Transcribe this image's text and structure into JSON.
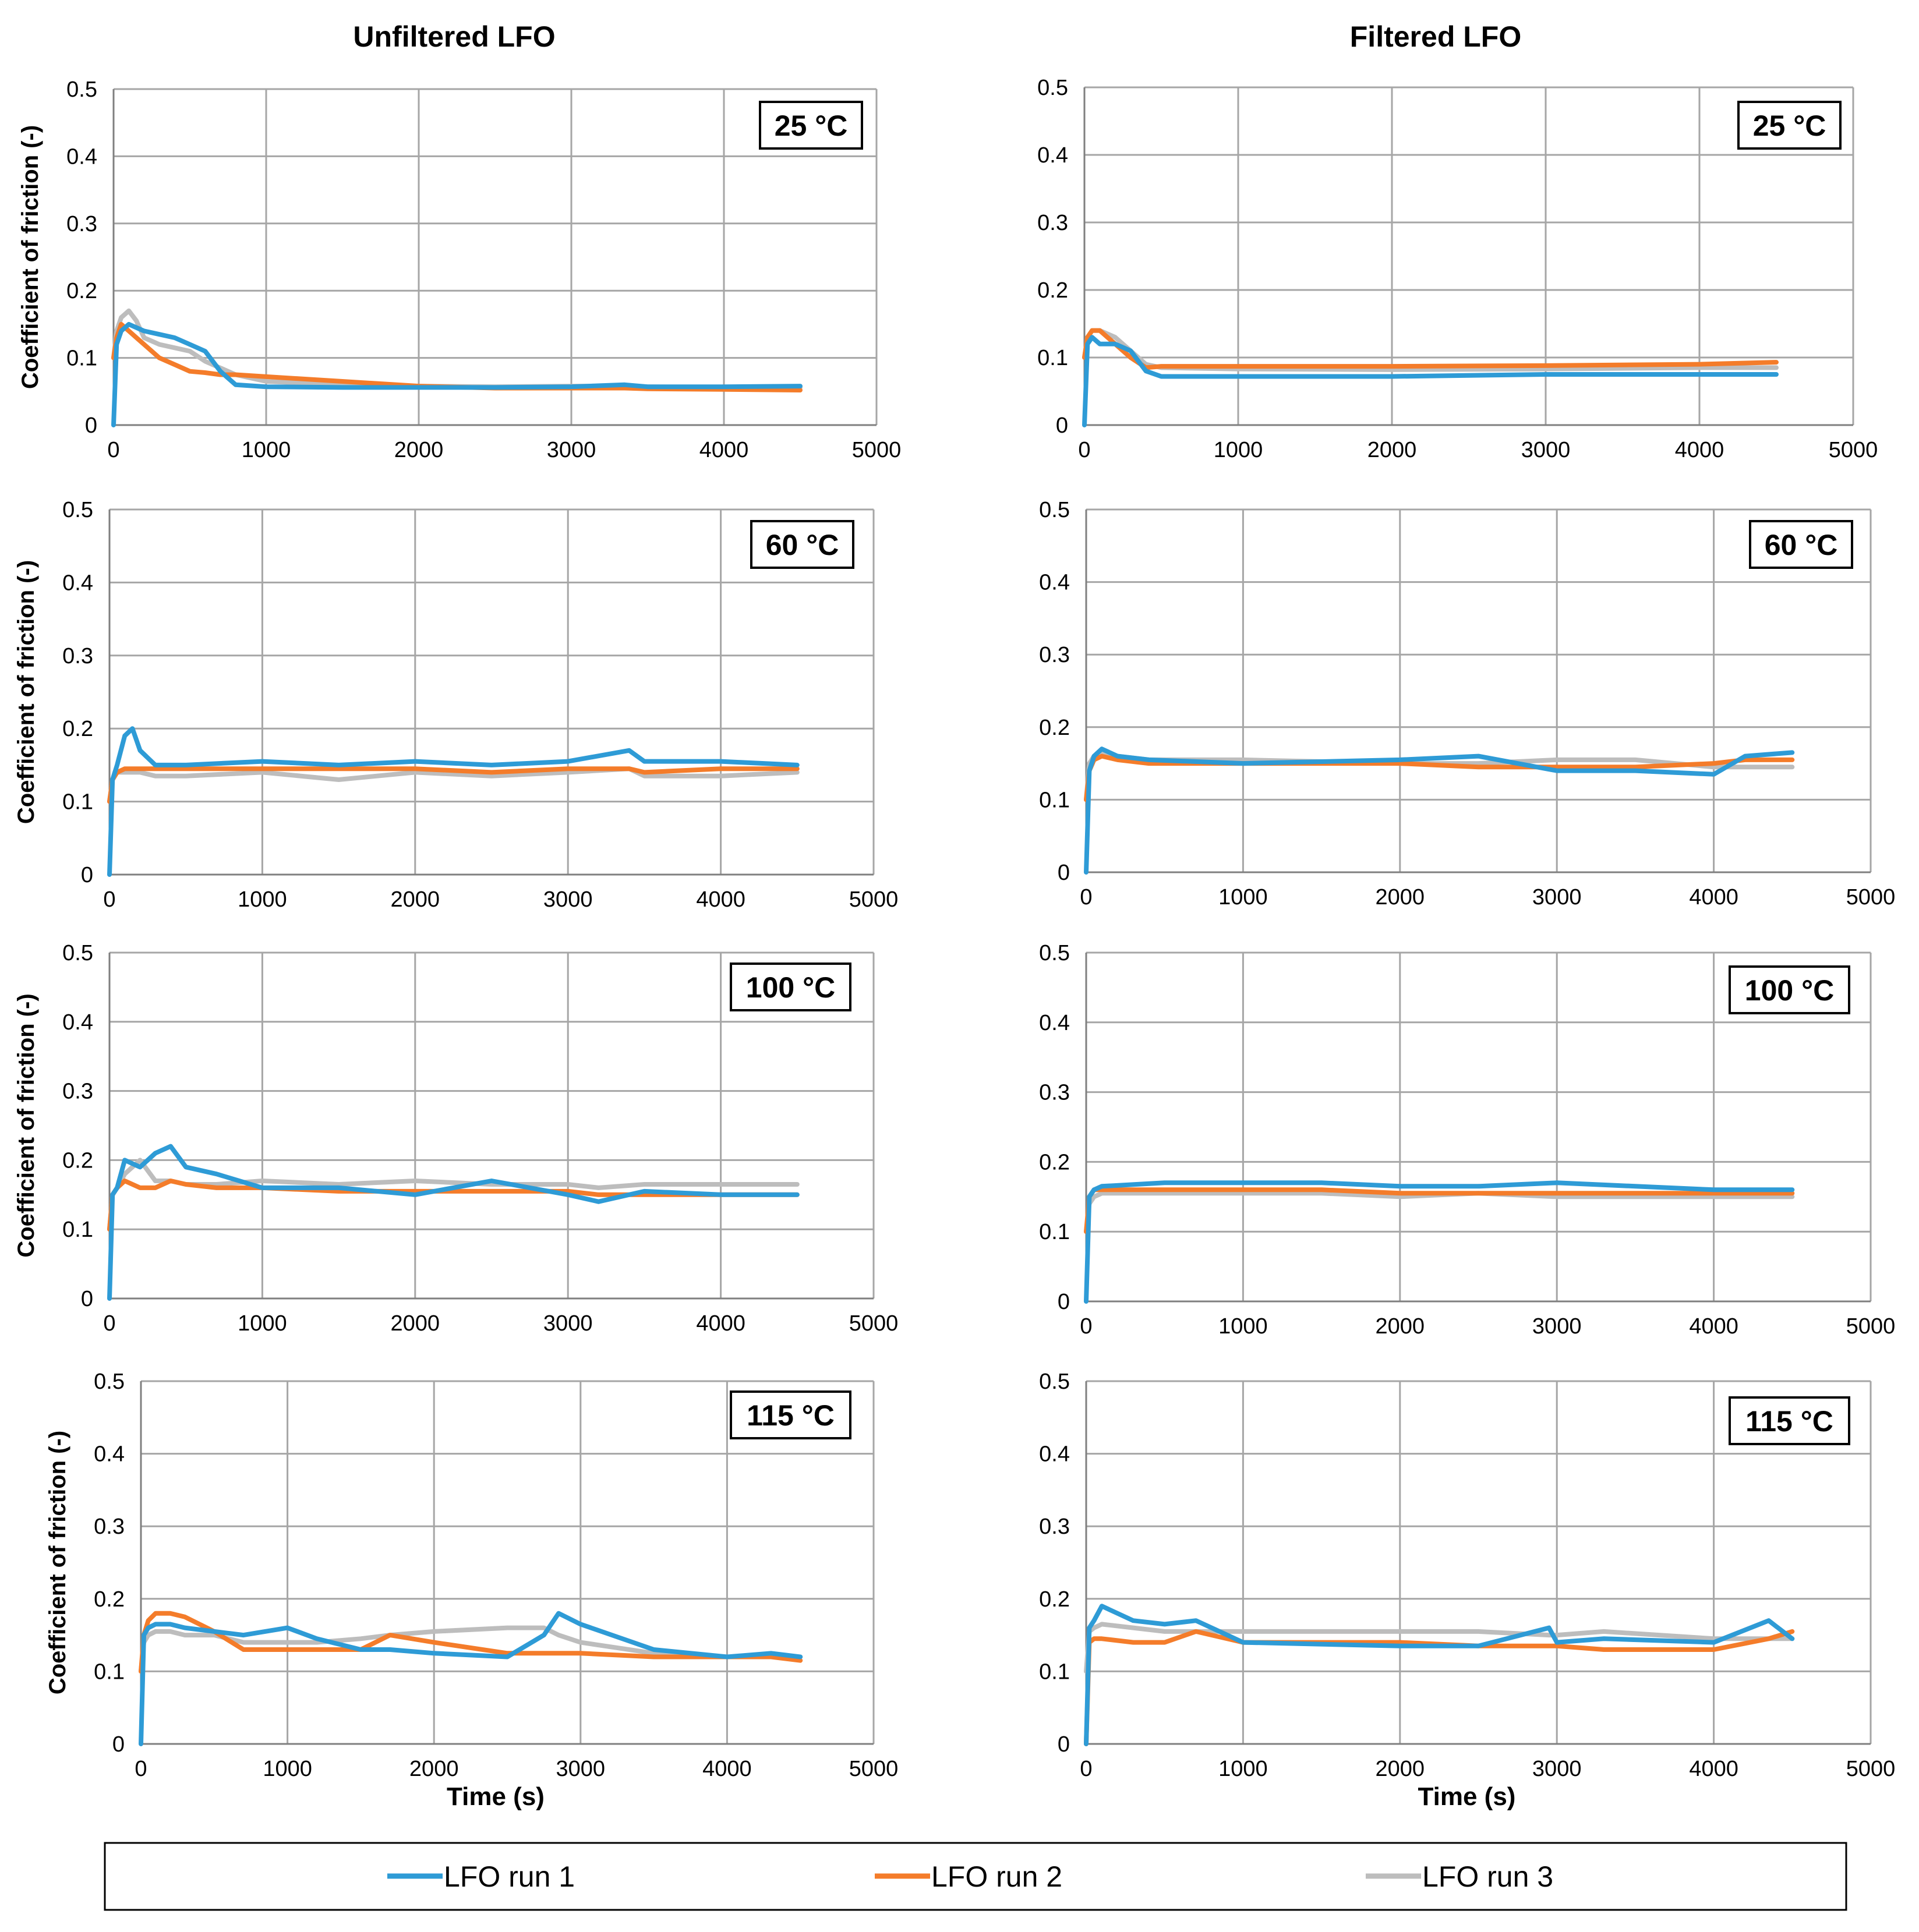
{
  "figure": {
    "column_titles": [
      "Unfiltered LFO",
      "Filtered LFO"
    ],
    "legend": [
      {
        "label": "LFO run 1",
        "color": "#2E9BD6"
      },
      {
        "label": "LFO run 2",
        "color": "#F47C2A"
      },
      {
        "label": "LFO run 3",
        "color": "#BDBDBD"
      }
    ]
  },
  "chart_data": [
    {
      "type": "line",
      "panel": "Unfiltered LFO",
      "annotation": "25 °C",
      "ylabel": "Coefficient of friction (-)",
      "xlabel": "",
      "xlim": [
        0,
        5000
      ],
      "ylim": [
        0,
        0.5
      ],
      "xticks": [
        "0",
        "1000",
        "2000",
        "3000",
        "4000",
        "5000"
      ],
      "yticks": [
        "0",
        "0.1",
        "0.2",
        "0.3",
        "0.4",
        "0.5"
      ],
      "grid": true,
      "x": [
        0,
        20,
        50,
        100,
        150,
        200,
        300,
        400,
        500,
        600,
        700,
        800,
        1000,
        1500,
        2000,
        2500,
        3000,
        3350,
        3500,
        4000,
        4500
      ],
      "series": [
        {
          "name": "LFO run 1",
          "values": [
            0.0,
            0.12,
            0.14,
            0.15,
            0.145,
            0.14,
            0.135,
            0.13,
            0.12,
            0.11,
            0.08,
            0.06,
            0.057,
            0.056,
            0.056,
            0.056,
            0.057,
            0.06,
            0.057,
            0.057,
            0.058
          ]
        },
        {
          "name": "LFO run 2",
          "values": [
            0.1,
            0.13,
            0.15,
            0.14,
            0.13,
            0.12,
            0.1,
            0.09,
            0.08,
            0.078,
            0.075,
            0.075,
            0.072,
            0.065,
            0.058,
            0.055,
            0.055,
            0.055,
            0.054,
            0.053,
            0.052
          ]
        },
        {
          "name": "LFO run 3",
          "values": [
            0.1,
            0.14,
            0.16,
            0.17,
            0.155,
            0.13,
            0.12,
            0.115,
            0.11,
            0.095,
            0.085,
            0.075,
            0.065,
            0.06,
            0.058,
            0.057,
            0.058,
            0.058,
            0.057,
            0.056,
            0.056
          ]
        }
      ]
    },
    {
      "type": "line",
      "panel": "Filtered LFO",
      "annotation": "25 °C",
      "ylabel": "",
      "xlabel": "",
      "xlim": [
        0,
        5000
      ],
      "ylim": [
        0,
        0.5
      ],
      "xticks": [
        "0",
        "1000",
        "2000",
        "3000",
        "4000",
        "5000"
      ],
      "yticks": [
        "0",
        "0.1",
        "0.2",
        "0.3",
        "0.4",
        "0.5"
      ],
      "grid": true,
      "x": [
        0,
        20,
        50,
        100,
        150,
        200,
        300,
        400,
        500,
        1000,
        2000,
        3000,
        4000,
        4500
      ],
      "series": [
        {
          "name": "LFO run 1",
          "values": [
            0.0,
            0.12,
            0.13,
            0.12,
            0.12,
            0.12,
            0.11,
            0.08,
            0.072,
            0.072,
            0.072,
            0.075,
            0.075,
            0.075
          ]
        },
        {
          "name": "LFO run 2",
          "values": [
            0.1,
            0.13,
            0.14,
            0.14,
            0.13,
            0.12,
            0.1,
            0.085,
            0.087,
            0.087,
            0.087,
            0.088,
            0.09,
            0.093
          ]
        },
        {
          "name": "LFO run 3",
          "values": [
            0.1,
            0.13,
            0.14,
            0.14,
            0.135,
            0.13,
            0.11,
            0.09,
            0.085,
            0.083,
            0.082,
            0.083,
            0.085,
            0.085
          ]
        }
      ]
    },
    {
      "type": "line",
      "panel": "Unfiltered LFO",
      "annotation": "60 °C",
      "ylabel": "Coefficient of friction (-)",
      "xlabel": "",
      "xlim": [
        0,
        5000
      ],
      "ylim": [
        0,
        0.5
      ],
      "xticks": [
        "0",
        "1000",
        "2000",
        "3000",
        "4000",
        "5000"
      ],
      "yticks": [
        "0",
        "0.1",
        "0.2",
        "0.3",
        "0.4",
        "0.5"
      ],
      "grid": true,
      "x": [
        0,
        20,
        50,
        100,
        150,
        200,
        300,
        500,
        1000,
        1500,
        2000,
        2500,
        3000,
        3400,
        3500,
        4000,
        4500
      ],
      "series": [
        {
          "name": "LFO run 1",
          "values": [
            0.0,
            0.13,
            0.15,
            0.19,
            0.2,
            0.17,
            0.15,
            0.15,
            0.155,
            0.15,
            0.155,
            0.15,
            0.155,
            0.17,
            0.155,
            0.155,
            0.15
          ]
        },
        {
          "name": "LFO run 2",
          "values": [
            0.1,
            0.13,
            0.14,
            0.145,
            0.145,
            0.145,
            0.145,
            0.145,
            0.145,
            0.145,
            0.145,
            0.14,
            0.145,
            0.145,
            0.14,
            0.145,
            0.145
          ]
        },
        {
          "name": "LFO run 3",
          "values": [
            0.1,
            0.13,
            0.14,
            0.14,
            0.14,
            0.14,
            0.135,
            0.135,
            0.14,
            0.13,
            0.14,
            0.135,
            0.14,
            0.145,
            0.135,
            0.135,
            0.14
          ]
        }
      ]
    },
    {
      "type": "line",
      "panel": "Filtered LFO",
      "annotation": "60 °C",
      "ylabel": "",
      "xlabel": "",
      "xlim": [
        0,
        5000
      ],
      "ylim": [
        0,
        0.5
      ],
      "xticks": [
        "0",
        "1000",
        "2000",
        "3000",
        "4000",
        "5000"
      ],
      "yticks": [
        "0",
        "0.1",
        "0.2",
        "0.3",
        "0.4",
        "0.5"
      ],
      "grid": true,
      "x": [
        0,
        20,
        50,
        100,
        200,
        400,
        1000,
        2000,
        2500,
        3000,
        3500,
        4000,
        4200,
        4500
      ],
      "series": [
        {
          "name": "LFO run 1",
          "values": [
            0.0,
            0.14,
            0.16,
            0.17,
            0.16,
            0.155,
            0.15,
            0.155,
            0.16,
            0.14,
            0.14,
            0.135,
            0.16,
            0.165
          ]
        },
        {
          "name": "LFO run 2",
          "values": [
            0.1,
            0.14,
            0.155,
            0.16,
            0.155,
            0.15,
            0.15,
            0.15,
            0.145,
            0.145,
            0.145,
            0.15,
            0.155,
            0.155
          ]
        },
        {
          "name": "LFO run 3",
          "values": [
            0.1,
            0.15,
            0.16,
            0.165,
            0.16,
            0.155,
            0.155,
            0.15,
            0.15,
            0.155,
            0.155,
            0.145,
            0.145,
            0.145
          ]
        }
      ]
    },
    {
      "type": "line",
      "panel": "Unfiltered LFO",
      "annotation": "100 °C",
      "ylabel": "Coefficient of friction (-)",
      "xlabel": "",
      "xlim": [
        0,
        5000
      ],
      "ylim": [
        0,
        0.5
      ],
      "xticks": [
        "0",
        "1000",
        "2000",
        "3000",
        "4000",
        "5000"
      ],
      "yticks": [
        "0",
        "0.1",
        "0.2",
        "0.3",
        "0.4",
        "0.5"
      ],
      "grid": true,
      "x": [
        0,
        20,
        50,
        100,
        200,
        300,
        400,
        500,
        700,
        1000,
        1500,
        2000,
        2500,
        3000,
        3200,
        3500,
        4000,
        4500
      ],
      "series": [
        {
          "name": "LFO run 1",
          "values": [
            0.0,
            0.15,
            0.16,
            0.2,
            0.19,
            0.21,
            0.22,
            0.19,
            0.18,
            0.16,
            0.16,
            0.15,
            0.17,
            0.15,
            0.14,
            0.155,
            0.15,
            0.15
          ]
        },
        {
          "name": "LFO run 2",
          "values": [
            0.1,
            0.15,
            0.16,
            0.17,
            0.16,
            0.16,
            0.17,
            0.165,
            0.16,
            0.16,
            0.155,
            0.155,
            0.155,
            0.155,
            0.15,
            0.15,
            0.15,
            0.15
          ]
        },
        {
          "name": "LFO run 3",
          "values": [
            0.1,
            0.15,
            0.16,
            0.18,
            0.2,
            0.17,
            0.17,
            0.165,
            0.165,
            0.17,
            0.165,
            0.17,
            0.165,
            0.165,
            0.16,
            0.165,
            0.165,
            0.165
          ]
        }
      ]
    },
    {
      "type": "line",
      "panel": "Filtered LFO",
      "annotation": "100 °C",
      "ylabel": "",
      "xlabel": "",
      "xlim": [
        0,
        5000
      ],
      "ylim": [
        0,
        0.5
      ],
      "xticks": [
        "0",
        "1000",
        "2000",
        "3000",
        "4000",
        "5000"
      ],
      "yticks": [
        "0",
        "0.1",
        "0.2",
        "0.3",
        "0.4",
        "0.5"
      ],
      "grid": true,
      "x": [
        0,
        20,
        50,
        100,
        500,
        1000,
        1500,
        2000,
        2500,
        3000,
        3500,
        4000,
        4500
      ],
      "series": [
        {
          "name": "LFO run 1",
          "values": [
            0.0,
            0.15,
            0.16,
            0.165,
            0.17,
            0.17,
            0.17,
            0.165,
            0.165,
            0.17,
            0.165,
            0.16,
            0.16
          ]
        },
        {
          "name": "LFO run 2",
          "values": [
            0.1,
            0.15,
            0.16,
            0.16,
            0.16,
            0.16,
            0.16,
            0.155,
            0.155,
            0.155,
            0.155,
            0.155,
            0.155
          ]
        },
        {
          "name": "LFO run 3",
          "values": [
            0.1,
            0.14,
            0.15,
            0.155,
            0.155,
            0.155,
            0.155,
            0.15,
            0.155,
            0.15,
            0.15,
            0.15,
            0.15
          ]
        }
      ]
    },
    {
      "type": "line",
      "panel": "Unfiltered LFO",
      "annotation": "115 °C",
      "ylabel": "Coefficient of friction (-)",
      "xlabel": "Time (s)",
      "xlim": [
        0,
        5000
      ],
      "ylim": [
        0,
        0.5
      ],
      "xticks": [
        "0",
        "1000",
        "2000",
        "3000",
        "4000",
        "5000"
      ],
      "yticks": [
        "0",
        "0.1",
        "0.2",
        "0.3",
        "0.4",
        "0.5"
      ],
      "grid": true,
      "x": [
        0,
        20,
        50,
        100,
        200,
        300,
        500,
        700,
        1000,
        1200,
        1500,
        1700,
        2000,
        2500,
        2750,
        2850,
        3000,
        3500,
        4000,
        4300,
        4500
      ],
      "series": [
        {
          "name": "LFO run 1",
          "values": [
            0.0,
            0.15,
            0.16,
            0.165,
            0.165,
            0.16,
            0.155,
            0.15,
            0.16,
            0.145,
            0.13,
            0.13,
            0.125,
            0.12,
            0.15,
            0.18,
            0.165,
            0.13,
            0.12,
            0.125,
            0.12
          ]
        },
        {
          "name": "LFO run 2",
          "values": [
            0.1,
            0.15,
            0.17,
            0.18,
            0.18,
            0.175,
            0.155,
            0.13,
            0.13,
            0.13,
            0.13,
            0.15,
            0.14,
            0.125,
            0.125,
            0.125,
            0.125,
            0.12,
            0.12,
            0.12,
            0.115
          ]
        },
        {
          "name": "LFO run 3",
          "values": [
            0.1,
            0.14,
            0.15,
            0.155,
            0.155,
            0.15,
            0.15,
            0.14,
            0.14,
            0.14,
            0.145,
            0.15,
            0.155,
            0.16,
            0.16,
            0.15,
            0.14,
            0.125,
            0.12,
            0.12,
            0.12
          ]
        }
      ]
    },
    {
      "type": "line",
      "panel": "Filtered LFO",
      "annotation": "115 °C",
      "ylabel": "",
      "xlabel": "Time (s)",
      "xlim": [
        0,
        5000
      ],
      "ylim": [
        0,
        0.5
      ],
      "xticks": [
        "0",
        "1000",
        "2000",
        "3000",
        "4000",
        "5000"
      ],
      "yticks": [
        "0",
        "0.1",
        "0.2",
        "0.3",
        "0.4",
        "0.5"
      ],
      "grid": true,
      "x": [
        0,
        20,
        50,
        100,
        300,
        500,
        700,
        1000,
        2000,
        2500,
        2950,
        3000,
        3300,
        4000,
        4350,
        4500
      ],
      "series": [
        {
          "name": "LFO run 1",
          "values": [
            0.0,
            0.16,
            0.17,
            0.19,
            0.17,
            0.165,
            0.17,
            0.14,
            0.135,
            0.135,
            0.16,
            0.14,
            0.145,
            0.14,
            0.17,
            0.145
          ]
        },
        {
          "name": "LFO run 2",
          "values": [
            0.0,
            0.14,
            0.145,
            0.145,
            0.14,
            0.14,
            0.155,
            0.14,
            0.14,
            0.135,
            0.135,
            0.135,
            0.13,
            0.13,
            0.145,
            0.155
          ]
        },
        {
          "name": "LFO run 3",
          "values": [
            0.1,
            0.155,
            0.16,
            0.165,
            0.16,
            0.155,
            0.155,
            0.155,
            0.155,
            0.155,
            0.15,
            0.15,
            0.155,
            0.145,
            0.145,
            0.145
          ]
        }
      ]
    }
  ]
}
